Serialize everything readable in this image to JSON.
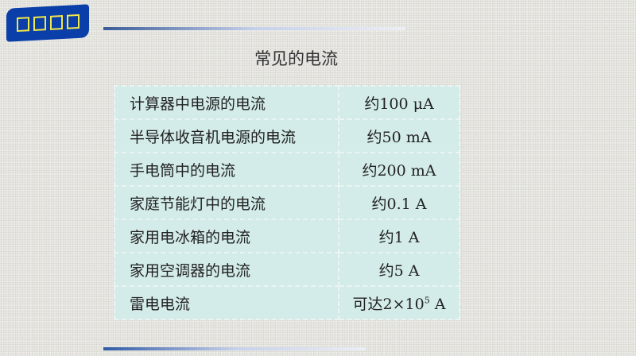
{
  "badge": {
    "icon": "missing-glyph-boxes",
    "color": "#0a3ea8"
  },
  "title": "常见的电流",
  "rows": [
    {
      "name": "计算器中电源的电流",
      "value": "约100 μA"
    },
    {
      "name": "半导体收音机电源的电流",
      "value": "约50 mA"
    },
    {
      "name": "手电筒中的电流",
      "value": "约200 mA"
    },
    {
      "name": "家庭节能灯中的电流",
      "value": "约0.1 A"
    },
    {
      "name": "家用电冰箱的电流",
      "value": "约1 A"
    },
    {
      "name": "家用空调器的电流",
      "value": "约5 A"
    },
    {
      "name": "雷电电流",
      "value_prefix": "可达2×10",
      "value_exp": "5",
      "value_unit": " A"
    }
  ]
}
